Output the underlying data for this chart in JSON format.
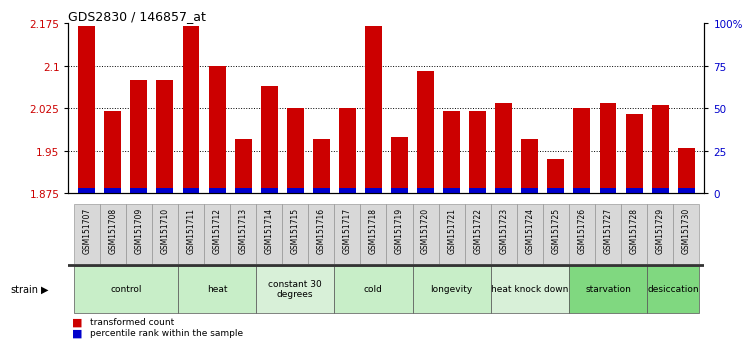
{
  "title": "GDS2830 / 146857_at",
  "samples": [
    "GSM151707",
    "GSM151708",
    "GSM151709",
    "GSM151710",
    "GSM151711",
    "GSM151712",
    "GSM151713",
    "GSM151714",
    "GSM151715",
    "GSM151716",
    "GSM151717",
    "GSM151718",
    "GSM151719",
    "GSM151720",
    "GSM151721",
    "GSM151722",
    "GSM151723",
    "GSM151724",
    "GSM151725",
    "GSM151726",
    "GSM151727",
    "GSM151728",
    "GSM151729",
    "GSM151730"
  ],
  "red_values": [
    2.17,
    2.02,
    2.075,
    2.075,
    2.17,
    2.1,
    1.97,
    2.065,
    2.025,
    1.97,
    2.025,
    2.17,
    1.975,
    2.09,
    2.02,
    2.02,
    2.035,
    1.97,
    1.935,
    2.025,
    2.035,
    2.015,
    2.03,
    1.955
  ],
  "blue_percentiles": [
    3,
    3,
    3,
    3,
    3,
    3,
    3,
    3,
    3,
    3,
    3,
    3,
    3,
    3,
    3,
    3,
    3,
    3,
    3,
    3,
    3,
    3,
    3,
    3
  ],
  "ymin": 1.875,
  "ymax": 2.175,
  "yticks": [
    1.875,
    1.95,
    2.025,
    2.1,
    2.175
  ],
  "ytick_labels": [
    "1.875",
    "1.95",
    "2.025",
    "2.1",
    "2.175"
  ],
  "right_yticks": [
    0,
    25,
    50,
    75,
    100
  ],
  "right_ytick_labels": [
    "0",
    "25",
    "50",
    "75",
    "100%"
  ],
  "groups": [
    {
      "label": "control",
      "start": 0,
      "end": 3,
      "color": "#c8eec8"
    },
    {
      "label": "heat",
      "start": 4,
      "end": 6,
      "color": "#c8eec8"
    },
    {
      "label": "constant 30\ndegrees",
      "start": 7,
      "end": 9,
      "color": "#d8f0d8"
    },
    {
      "label": "cold",
      "start": 10,
      "end": 12,
      "color": "#c8eec8"
    },
    {
      "label": "longevity",
      "start": 13,
      "end": 15,
      "color": "#c8eec8"
    },
    {
      "label": "heat knock down",
      "start": 16,
      "end": 18,
      "color": "#d8f0d8"
    },
    {
      "label": "starvation",
      "start": 19,
      "end": 21,
      "color": "#80d880"
    },
    {
      "label": "desiccation",
      "start": 22,
      "end": 23,
      "color": "#80d880"
    }
  ],
  "bar_color_red": "#cc0000",
  "bar_color_blue": "#0000cc",
  "bar_width": 0.65
}
